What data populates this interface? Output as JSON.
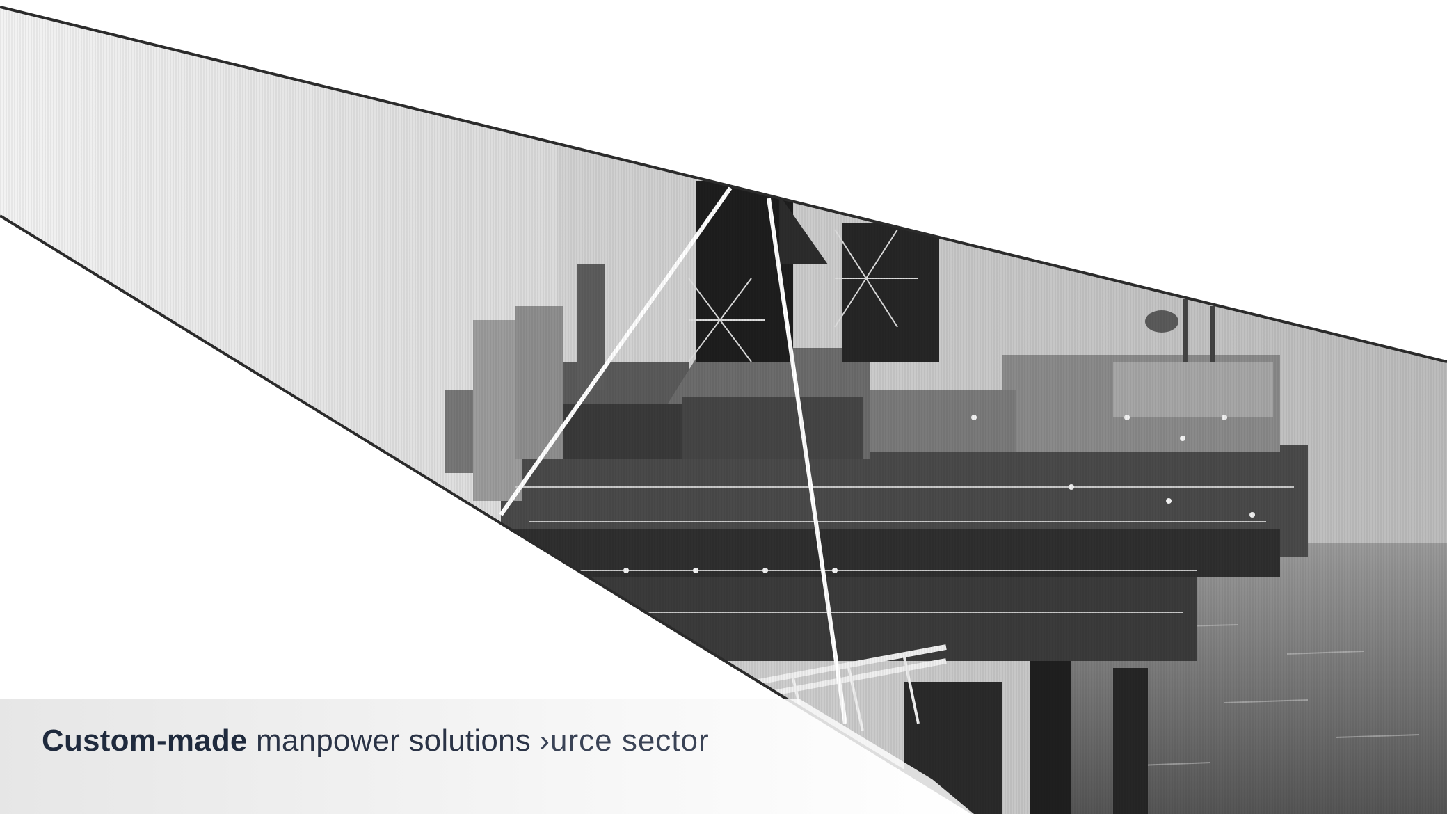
{
  "tagline": {
    "bold_part": "Custom-made",
    "regular_part": " manpower solutions ",
    "trailing_part": "›urce sector"
  },
  "hero": {
    "subject": "offshore-oil-platform-photo",
    "tone": "grayscale"
  },
  "colors": {
    "background": "#ffffff",
    "text_dark": "#1f2a3d",
    "stripe_dark": "#2b2b2b",
    "sea": "#6e6e6e",
    "sky": "#d8d8d8"
  }
}
